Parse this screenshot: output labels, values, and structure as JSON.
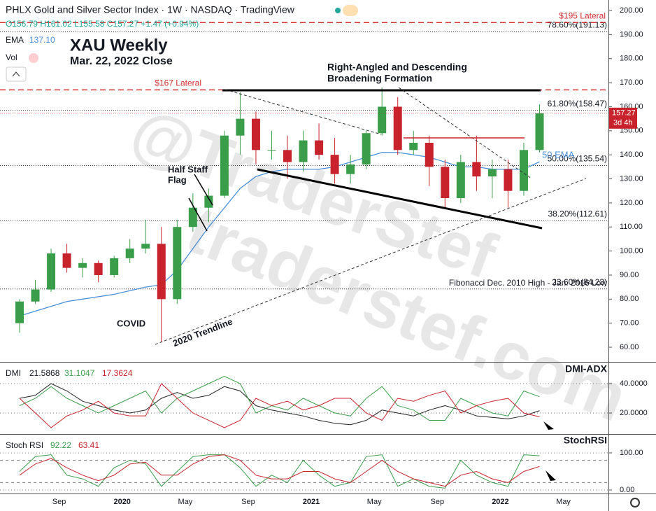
{
  "header": {
    "title": "PHLX Gold and Silver Sector Index · 1W · NASDAQ · TradingView",
    "ohlc": "O156.79 H161.02 L155.58 C157.27 +1.47 (+0.94%)",
    "ema_label": "EMA",
    "ema_value": "137.10",
    "vol_label": "Vol",
    "countdown": "3d 4h",
    "watermark_top": "@TraderStef",
    "watermark_bottom": "traderstef.com"
  },
  "annotations": {
    "chart_title": "XAU Weekly",
    "chart_date": "Mar. 22, 2022 Close",
    "formation_1": "Right-Angled and Descending",
    "formation_2": "Broadening Formation",
    "flag_1": "Half Staff",
    "flag_2": "Flag",
    "covid": "COVID",
    "trendline": "2020 Trendline",
    "ema_note": "50 EMA",
    "fib_note": "Fibonacci Dec. 2010 High - Jan. 2016 Low"
  },
  "chart_data": [
    {
      "type": "candlestick",
      "pane": "main",
      "categories": [
        null,
        null,
        null,
        "Sep",
        null,
        null,
        null,
        "2020",
        null,
        null,
        null,
        "May",
        null,
        null,
        null,
        "Sep",
        null,
        null,
        null,
        "2021",
        null,
        null,
        null,
        "May",
        null,
        null,
        null,
        "Sep",
        null,
        null,
        null,
        "2022",
        null,
        null,
        null,
        "May"
      ],
      "open": [
        70,
        79,
        84,
        99,
        93,
        95,
        90,
        97,
        101,
        103,
        80,
        110,
        118,
        123,
        148,
        155,
        142,
        142,
        137,
        146,
        140,
        132,
        136,
        149,
        160,
        142,
        145,
        135,
        122,
        137,
        131,
        134,
        125,
        142,
        null,
        null
      ],
      "high": [
        80,
        88,
        101,
        103,
        97,
        96,
        98,
        105,
        113,
        110,
        113,
        124,
        126,
        150,
        166,
        158,
        150,
        148,
        150,
        153,
        147,
        140,
        150,
        168,
        164,
        150,
        148,
        138,
        140,
        148,
        138,
        138,
        145,
        161,
        null,
        null
      ],
      "low": [
        66,
        78,
        83,
        91,
        89,
        87,
        89,
        95,
        99,
        62,
        78,
        108,
        112,
        122,
        140,
        136,
        138,
        130,
        133,
        138,
        128,
        128,
        134,
        148,
        140,
        140,
        127,
        118,
        120,
        125,
        122,
        118,
        123,
        141,
        null,
        null
      ],
      "close": [
        79,
        84,
        99,
        93,
        95,
        90,
        97,
        101,
        103,
        80,
        110,
        118,
        123,
        148,
        155,
        142,
        142,
        137,
        146,
        140,
        132,
        136,
        149,
        160,
        142,
        145,
        135,
        122,
        137,
        131,
        134,
        125,
        142,
        157.27,
        null,
        null
      ],
      "up_color": "#3a9d4a",
      "down_color": "#c8232c",
      "ema": {
        "color": "#4a90d9",
        "values": [
          73,
          75,
          77,
          79,
          80,
          81,
          82,
          83.5,
          85,
          86,
          92,
          101,
          110,
          118,
          126,
          131,
          133,
          134,
          134,
          134,
          135,
          137,
          139,
          141,
          141,
          140,
          139,
          137,
          135,
          135,
          134,
          134,
          134,
          137.1,
          null,
          null
        ]
      },
      "price_tag_color": "#c8232c",
      "ylim": [
        53.9,
        204.37
      ],
      "yticks": [
        {
          "value": 200,
          "label": "200.00"
        },
        {
          "value": 190,
          "label": "190.00"
        },
        {
          "value": 180,
          "label": "180.00"
        },
        {
          "value": 170,
          "label": "170.00"
        },
        {
          "value": 160,
          "label": "160.00"
        },
        {
          "value": 150,
          "label": "150.00"
        },
        {
          "value": 140,
          "label": "140.00"
        },
        {
          "value": 130,
          "label": "130.00"
        },
        {
          "value": 120,
          "label": "120.00"
        },
        {
          "value": 110,
          "label": "110.00"
        },
        {
          "value": 100,
          "label": "100.00"
        },
        {
          "value": 90,
          "label": "90.00"
        },
        {
          "value": 80,
          "label": "80.00"
        },
        {
          "value": 70,
          "label": "70.00"
        },
        {
          "value": 60,
          "label": "60.00"
        }
      ],
      "fib_levels": [
        {
          "value": 191.13,
          "label": "78.60%(191.13)"
        },
        {
          "value": 158.47,
          "label": "61.80%(158.47)"
        },
        {
          "value": 135.54,
          "label": "50.00%(135.54)"
        },
        {
          "value": 112.61,
          "label": "38.20%(112.61)"
        },
        {
          "value": 84.23,
          "label": "23.60%(84.23)"
        }
      ],
      "laterals": [
        {
          "value": 195,
          "label": "$195 Lateral"
        },
        {
          "value": 167,
          "label": "$167 Lateral"
        }
      ]
    },
    {
      "type": "line",
      "pane": "dmi",
      "title": "DMI-ADX",
      "legend_label": "DMI",
      "series": [
        {
          "color": "#222222",
          "values": [
            30,
            32,
            40,
            35,
            28,
            25,
            22,
            20,
            22,
            30,
            34,
            30,
            32,
            38,
            35,
            25,
            22,
            20,
            18,
            15,
            13,
            12,
            15,
            22,
            20,
            18,
            22,
            25,
            22,
            18,
            17,
            16,
            18,
            21.5868,
            null,
            null
          ]
        },
        {
          "color": "#3a9d4a",
          "values": [
            25,
            30,
            38,
            30,
            25,
            20,
            25,
            30,
            35,
            20,
            30,
            35,
            40,
            45,
            40,
            20,
            25,
            22,
            30,
            25,
            20,
            18,
            30,
            38,
            25,
            22,
            15,
            15,
            30,
            25,
            20,
            18,
            35,
            31.1047,
            null,
            null
          ]
        },
        {
          "color": "#c8232c",
          "values": [
            30,
            20,
            10,
            18,
            22,
            28,
            20,
            18,
            18,
            40,
            30,
            20,
            15,
            10,
            15,
            30,
            25,
            28,
            22,
            25,
            30,
            30,
            20,
            15,
            30,
            28,
            32,
            35,
            20,
            25,
            28,
            30,
            20,
            17.3624,
            null,
            null
          ]
        }
      ],
      "ylim": [
        5.7,
        54.3
      ],
      "yticks": [
        {
          "value": 40,
          "label": "40.0000"
        },
        {
          "value": 20,
          "label": "20.0000"
        }
      ]
    },
    {
      "type": "line",
      "pane": "stoch",
      "title": "StochRSI",
      "legend_label": "Stoch RSI",
      "series": [
        {
          "color": "#3a9d4a",
          "values": [
            50,
            90,
            95,
            40,
            30,
            10,
            60,
            80,
            70,
            10,
            50,
            90,
            95,
            95,
            60,
            10,
            40,
            20,
            80,
            40,
            10,
            20,
            90,
            95,
            10,
            30,
            10,
            5,
            80,
            40,
            20,
            10,
            95,
            92.22,
            null,
            null
          ]
        },
        {
          "color": "#c8232c",
          "values": [
            40,
            70,
            85,
            60,
            40,
            25,
            40,
            70,
            75,
            40,
            40,
            70,
            90,
            95,
            80,
            40,
            30,
            30,
            50,
            50,
            30,
            20,
            50,
            80,
            50,
            30,
            20,
            10,
            40,
            50,
            30,
            20,
            50,
            63.41,
            null,
            null
          ]
        }
      ],
      "bands": [
        80,
        20
      ],
      "ylim": [
        -9.4,
        149
      ],
      "yticks": [
        {
          "value": 100,
          "label": "100.00"
        },
        {
          "value": 0,
          "label": "0.00"
        }
      ]
    }
  ]
}
